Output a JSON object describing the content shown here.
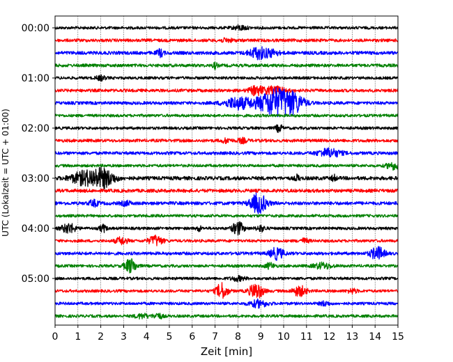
{
  "chart_data": {
    "type": "seismic-helicorder",
    "xlabel": "Zeit  [min]",
    "ylabel": "UTC (Lokalzeit = UTC + 01:00)",
    "xlim": [
      0,
      15
    ],
    "x_ticks": [
      "0",
      "1",
      "2",
      "3",
      "4",
      "5",
      "6",
      "7",
      "8",
      "9",
      "10",
      "11",
      "12",
      "13",
      "14",
      "15"
    ],
    "y_ticks": [
      {
        "label": "00:00",
        "trace": 0
      },
      {
        "label": "01:00",
        "trace": 4
      },
      {
        "label": "02:00",
        "trace": 8
      },
      {
        "label": "03:00",
        "trace": 12
      },
      {
        "label": "04:00",
        "trace": 16
      },
      {
        "label": "05:00",
        "trace": 20
      }
    ],
    "minutes_per_line": 15,
    "grid": "vertical dotted lines at each minute",
    "color_cycle": [
      "#000000",
      "#ff0000",
      "#0000ff",
      "#008000"
    ],
    "traces": [
      {
        "noise": 2.0,
        "events": [
          [
            8.1,
            3,
            0.3
          ]
        ]
      },
      {
        "noise": 2.2,
        "events": [
          [
            7.5,
            2,
            0.3
          ]
        ]
      },
      {
        "noise": 2.4,
        "events": [
          [
            4.6,
            5,
            0.15
          ],
          [
            8.9,
            8,
            0.4
          ],
          [
            9.5,
            4,
            0.3
          ]
        ]
      },
      {
        "noise": 2.2,
        "events": [
          [
            7.0,
            4,
            0.1
          ]
        ]
      },
      {
        "noise": 2.0,
        "events": [
          [
            2.0,
            3,
            0.2
          ]
        ]
      },
      {
        "noise": 2.2,
        "events": [
          [
            8.8,
            6,
            0.3
          ],
          [
            9.6,
            5,
            0.5
          ]
        ]
      },
      {
        "noise": 2.2,
        "events": [
          [
            8.0,
            8,
            0.6
          ],
          [
            9.7,
            20,
            0.8
          ],
          [
            10.5,
            8,
            0.4
          ]
        ]
      },
      {
        "noise": 2.0,
        "events": []
      },
      {
        "noise": 2.0,
        "events": [
          [
            9.8,
            5,
            0.15
          ]
        ]
      },
      {
        "noise": 2.2,
        "events": [
          [
            7.5,
            3,
            0.2
          ],
          [
            8.2,
            3,
            0.2
          ]
        ]
      },
      {
        "noise": 2.2,
        "events": [
          [
            12.0,
            6,
            0.5
          ]
        ]
      },
      {
        "noise": 2.0,
        "events": [
          [
            14.8,
            5,
            0.3
          ]
        ]
      },
      {
        "noise": 2.6,
        "events": [
          [
            1.3,
            9,
            0.6
          ],
          [
            2.1,
            12,
            0.5
          ],
          [
            10.6,
            4,
            0.1
          ],
          [
            12.2,
            4,
            0.1
          ]
        ]
      },
      {
        "noise": 2.4,
        "events": []
      },
      {
        "noise": 2.4,
        "events": [
          [
            1.7,
            4,
            0.2
          ],
          [
            3.1,
            3,
            0.2
          ],
          [
            8.9,
            14,
            0.35
          ]
        ]
      },
      {
        "noise": 2.0,
        "events": []
      },
      {
        "noise": 2.0,
        "events": [
          [
            0.6,
            7,
            0.3
          ],
          [
            2.1,
            5,
            0.15
          ],
          [
            6.3,
            4,
            0.1
          ],
          [
            8.0,
            9,
            0.25
          ],
          [
            9.0,
            4,
            0.2
          ]
        ]
      },
      {
        "noise": 2.0,
        "events": [
          [
            2.9,
            5,
            0.25
          ],
          [
            4.4,
            7,
            0.3
          ],
          [
            10.9,
            3,
            0.2
          ]
        ]
      },
      {
        "noise": 2.2,
        "events": [
          [
            9.7,
            8,
            0.3
          ],
          [
            14.1,
            9,
            0.3
          ]
        ]
      },
      {
        "noise": 2.0,
        "events": [
          [
            3.3,
            10,
            0.25
          ],
          [
            9.4,
            4,
            0.2
          ],
          [
            11.7,
            4,
            0.4
          ]
        ]
      },
      {
        "noise": 2.0,
        "events": [
          [
            8.0,
            3,
            0.3
          ]
        ]
      },
      {
        "noise": 2.0,
        "events": [
          [
            7.3,
            11,
            0.25
          ],
          [
            8.8,
            11,
            0.3
          ],
          [
            10.7,
            7,
            0.3
          ],
          [
            13.0,
            3,
            0.2
          ]
        ]
      },
      {
        "noise": 2.0,
        "events": [
          [
            8.9,
            5,
            0.4
          ],
          [
            11.8,
            3,
            0.2
          ]
        ]
      },
      {
        "noise": 2.0,
        "events": [
          [
            3.8,
            3,
            0.3
          ],
          [
            4.5,
            4,
            0.2
          ]
        ]
      }
    ]
  }
}
